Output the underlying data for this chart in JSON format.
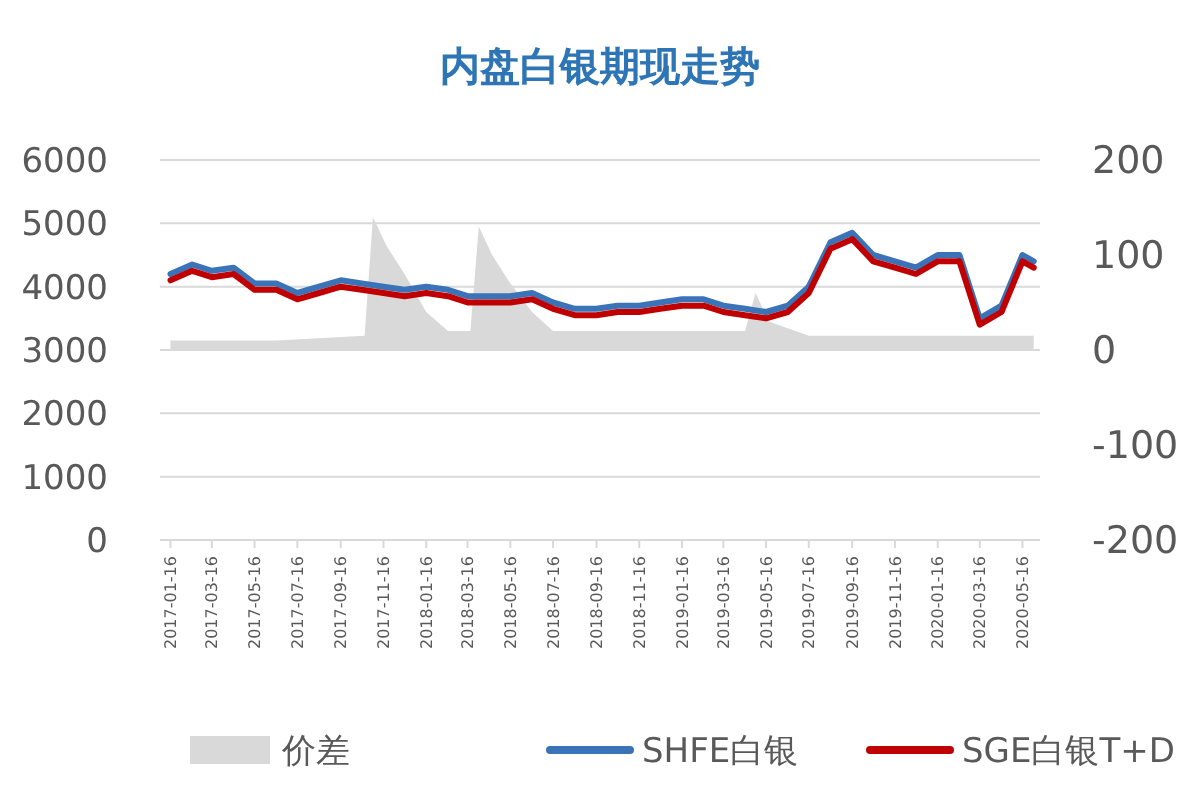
{
  "chart_data": {
    "type": "line",
    "title": "内盘白银期现走势",
    "x": [
      "2017-01-16",
      "2017-02-16",
      "2017-03-16",
      "2017-04-16",
      "2017-05-16",
      "2017-06-16",
      "2017-07-16",
      "2017-08-16",
      "2017-09-16",
      "2017-10-16",
      "2017-11-16",
      "2017-12-16",
      "2018-01-16",
      "2018-02-16",
      "2018-03-16",
      "2018-04-16",
      "2018-05-16",
      "2018-06-16",
      "2018-07-16",
      "2018-08-16",
      "2018-09-16",
      "2018-10-16",
      "2018-11-16",
      "2018-12-16",
      "2019-01-16",
      "2019-02-16",
      "2019-03-16",
      "2019-04-16",
      "2019-05-16",
      "2019-06-16",
      "2019-07-16",
      "2019-08-16",
      "2019-09-16",
      "2019-10-16",
      "2019-11-16",
      "2019-12-16",
      "2020-01-16",
      "2020-02-16",
      "2020-03-16",
      "2020-04-16",
      "2020-05-16",
      "2020-06-01"
    ],
    "series": [
      {
        "name": "价差",
        "type": "area",
        "axis": "y2",
        "color": "#d9d9d9",
        "x": [
          "2017-01-16",
          "2017-06-16",
          "2017-10-20",
          "2017-11-01",
          "2017-11-20",
          "2017-12-16",
          "2018-01-16",
          "2018-02-16",
          "2018-03-20",
          "2018-04-01",
          "2018-04-20",
          "2018-05-16",
          "2018-06-16",
          "2018-07-16",
          "2019-04-16",
          "2019-05-01",
          "2019-05-20",
          "2019-07-16",
          "2020-06-01"
        ],
        "values": [
          10,
          10,
          15,
          140,
          110,
          80,
          40,
          20,
          20,
          130,
          100,
          70,
          40,
          20,
          20,
          60,
          30,
          15,
          15
        ]
      },
      {
        "name": "SHFE白银",
        "color": "#3b73b9",
        "values": [
          4200,
          4350,
          4250,
          4300,
          4050,
          4050,
          3900,
          4000,
          4100,
          4050,
          4000,
          3950,
          4000,
          3950,
          3850,
          3850,
          3850,
          3900,
          3750,
          3650,
          3650,
          3700,
          3700,
          3750,
          3800,
          3800,
          3700,
          3650,
          3600,
          3700,
          4000,
          4700,
          4850,
          4500,
          4400,
          4300,
          4500,
          4500,
          3500,
          3700,
          4500,
          4400
        ]
      },
      {
        "name": "SGE白银T+D",
        "color": "#c00000",
        "values": [
          4100,
          4250,
          4150,
          4200,
          3950,
          3950,
          3800,
          3900,
          4000,
          3950,
          3900,
          3850,
          3900,
          3850,
          3750,
          3750,
          3750,
          3800,
          3650,
          3550,
          3550,
          3600,
          3600,
          3650,
          3700,
          3700,
          3600,
          3550,
          3500,
          3600,
          3900,
          4600,
          4750,
          4400,
          4300,
          4200,
          4400,
          4400,
          3400,
          3600,
          4400,
          4300
        ]
      }
    ],
    "xlim": [
      "2017-01-01",
      "2020-06-10"
    ],
    "xticks": [
      "2017-01-16",
      "2017-03-16",
      "2017-05-16",
      "2017-07-16",
      "2017-09-16",
      "2017-11-16",
      "2018-01-16",
      "2018-03-16",
      "2018-05-16",
      "2018-07-16",
      "2018-09-16",
      "2018-11-16",
      "2019-01-16",
      "2019-03-16",
      "2019-05-16",
      "2019-07-16",
      "2019-09-16",
      "2019-11-16",
      "2020-01-16",
      "2020-03-16",
      "2020-05-16"
    ],
    "ylim": [
      0,
      6000
    ],
    "yticks": [
      0,
      1000,
      2000,
      3000,
      4000,
      5000,
      6000
    ],
    "y2lim": [
      -200,
      200
    ],
    "y2ticks": [
      -200,
      -100,
      0,
      100,
      200
    ],
    "grid": "y",
    "legend": "bottom"
  }
}
